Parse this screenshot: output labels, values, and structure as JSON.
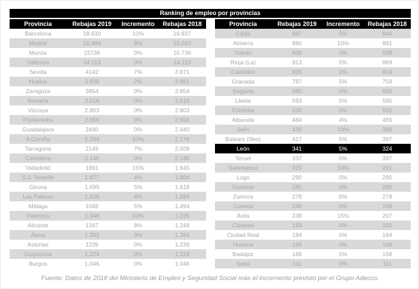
{
  "chart_data": {
    "type": "table",
    "title": "Ranking de empleo por provincias",
    "columns": [
      "Provincia",
      "Rebajas 2019",
      "Incremento",
      "Rebajas 2018"
    ],
    "tables": [
      {
        "name": "left",
        "shade_offset": 1,
        "highlight_row": -1,
        "rows": [
          [
            "Barcelona",
            "18.630",
            "10%",
            "16.937"
          ],
          [
            "Madrid",
            "16.484",
            "8%",
            "15.263"
          ],
          [
            "Murcia",
            "15736",
            "0%",
            "15.736"
          ],
          [
            "Valencia",
            "14.113",
            "0%",
            "14.113"
          ],
          [
            "Sevilla",
            "4142",
            "7%",
            "3.871"
          ],
          [
            "Huelva",
            "3.938",
            "2%",
            "3.861"
          ],
          [
            "Zaragoza",
            "3854",
            "0%",
            "3.854"
          ],
          [
            "Navarra",
            "3.516",
            "0%",
            "3.516"
          ],
          [
            "Vizcaya",
            "2.803",
            "0%",
            "2.803"
          ],
          [
            "Pontevedra",
            "2.656",
            "0%",
            "2.656"
          ],
          [
            "Guadalajara",
            "2440",
            "0%",
            "2.440"
          ],
          [
            "A Coruña",
            "2.394",
            "10%",
            "2.176"
          ],
          [
            "Tarragona",
            "2149",
            "7%",
            "2.008"
          ],
          [
            "Cantabria",
            "2.146",
            "0%",
            "2.146"
          ],
          [
            "Valladolid",
            "1891",
            "15%",
            "1.645"
          ],
          [
            "S.C Tenerife",
            "1.877",
            "4%",
            "1.804"
          ],
          [
            "Girona",
            "1.699",
            "5%",
            "1.618"
          ],
          [
            "Las Palmas",
            "1.626",
            "4%",
            "1.564"
          ],
          [
            "Málaga",
            "1569",
            "5%",
            "1.494"
          ],
          [
            "Palencia",
            "1.348",
            "10%",
            "1.225"
          ],
          [
            "Alicante",
            "1347",
            "8%",
            "1.248"
          ],
          [
            "Álava",
            "1.302",
            "3%",
            "1.264"
          ],
          [
            "Asturias",
            "1239",
            "0%",
            "1.239"
          ],
          [
            "Guipúzcoa",
            "1.224",
            "0%",
            "1.224"
          ],
          [
            "Burgos",
            "1.046",
            "0%",
            "1.046"
          ]
        ]
      },
      {
        "name": "right",
        "shade_offset": 0,
        "highlight_row": 12,
        "rows": [
          [
            "Cádiz",
            "987",
            "5%",
            "940"
          ],
          [
            "Almería",
            "980",
            "10%",
            "891"
          ],
          [
            "Toledo",
            "938",
            "0%",
            "938"
          ],
          [
            "Rioja (La)",
            "913",
            "5%",
            "869"
          ],
          [
            "Castellón",
            "835",
            "2%",
            "819"
          ],
          [
            "Granada",
            "797",
            "5%",
            "759"
          ],
          [
            "Segovia",
            "665",
            "0%",
            "665"
          ],
          [
            "Lleida",
            "593",
            "5%",
            "565"
          ],
          [
            "Córdoba",
            "526",
            "5%",
            "501"
          ],
          [
            "Albacete",
            "484",
            "4%",
            "465"
          ],
          [
            "Jaén",
            "439",
            "10%",
            "399"
          ],
          [
            "Balears (Illes)",
            "417",
            "5%",
            "397"
          ],
          [
            "León",
            "341",
            "5%",
            "324"
          ],
          [
            "Teruel",
            "337",
            "0%",
            "337"
          ],
          [
            "Salamanca",
            "320",
            "10%",
            "291"
          ],
          [
            "Lugo",
            "290",
            "0%",
            "290"
          ],
          [
            "Ourense",
            "285",
            "0%",
            "285"
          ],
          [
            "Zamora",
            "278",
            "0%",
            "278"
          ],
          [
            "Cuenca",
            "246",
            "0%",
            "246"
          ],
          [
            "Ávila",
            "238",
            "15%",
            "207"
          ],
          [
            "Cáceres",
            "193",
            "0%",
            "193"
          ],
          [
            "Ciudad Real",
            "184",
            "0%",
            "184"
          ],
          [
            "Huesca",
            "166",
            "0%",
            "166"
          ],
          [
            "Badajoz",
            "166",
            "5%",
            "158"
          ],
          [
            "Soria",
            "111",
            "0%",
            "111"
          ]
        ]
      }
    ],
    "source": "Fuente: Datos de 2018 del Ministerio de Empleo y Seguridad Social más el incremento previsto por el Grupo Adecco."
  },
  "colors": {
    "header_bg": "#000000",
    "header_text": "#ffffff",
    "shaded_row_bg": "#d9d9d9",
    "row_text": "#a6a6a6",
    "highlight_bg": "#000000",
    "highlight_text": "#ffffff",
    "source_text": "#9b9b9b"
  }
}
